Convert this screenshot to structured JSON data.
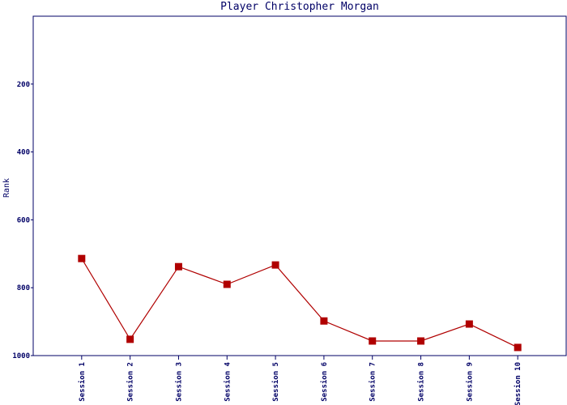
{
  "chart_data": {
    "type": "line",
    "title": "Player Christopher Morgan",
    "y_label": "Rank",
    "categories": [
      "Session 1",
      "Session 2",
      "Session 3",
      "Session 4",
      "Session 5",
      "Session 6",
      "Session 7",
      "Session 8",
      "Session 9",
      "Session 10"
    ],
    "series": [
      {
        "name": "Rank",
        "color": "#b00000",
        "values": [
          714,
          952,
          738,
          790,
          733,
          898,
          957,
          957,
          907,
          976
        ]
      }
    ],
    "ylim": [
      0,
      1000
    ],
    "yticks": [
      200,
      400,
      600,
      800,
      1000
    ],
    "inverted": true,
    "grid": false
  }
}
